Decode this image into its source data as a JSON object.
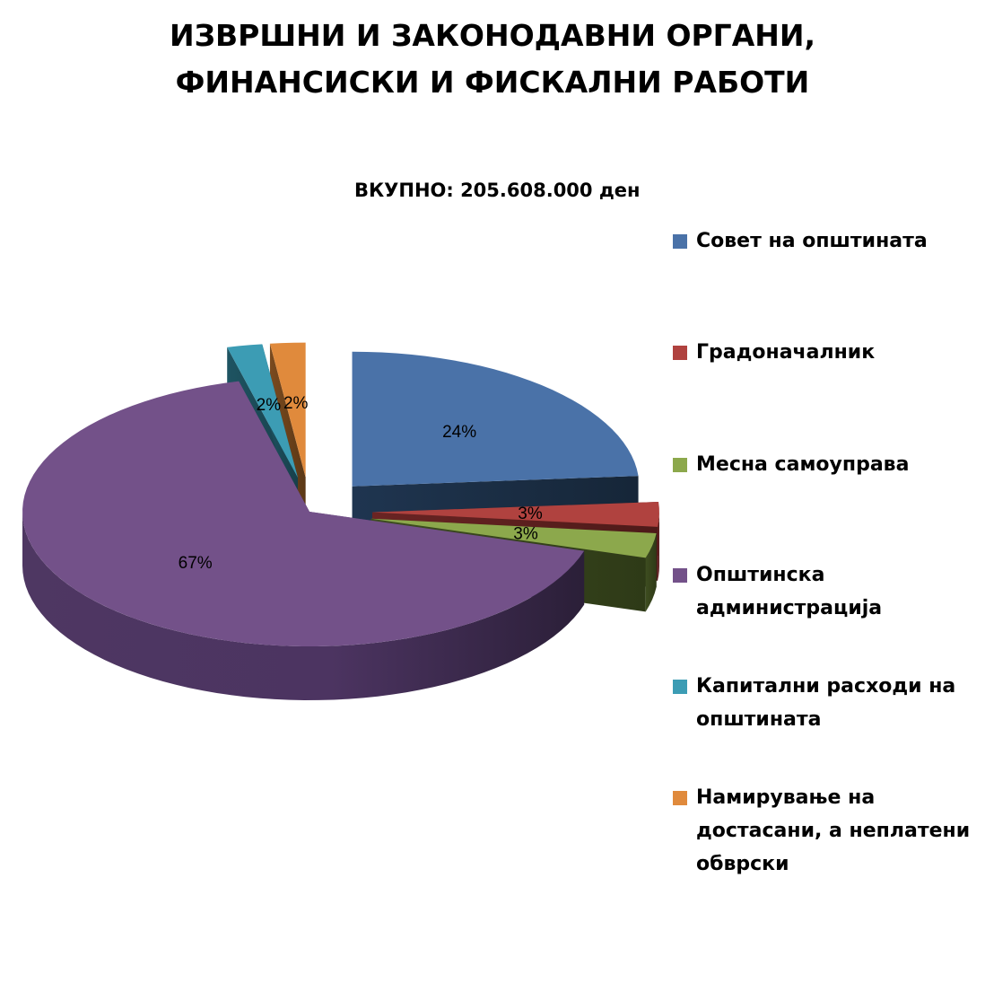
{
  "title_line1": "ИЗВРШНИ И ЗАКОНОДАВНИ ОРГАНИ,",
  "title_line2": "ФИНАНСИСКИ И ФИСКАЛНИ РАБОТИ",
  "chart_data": {
    "type": "pie",
    "title": "ИЗВРШНИ И ЗАКОНОДАВНИ ОРГАНИ, ФИНАНСИСКИ И ФИСКАЛНИ РАБОТИ",
    "subtitle": "ВКУПНО: 205.608.000 ден",
    "legend_position": "right",
    "slices": [
      {
        "label": "Совет на општината",
        "value": 24,
        "display": "24%",
        "color": "#4A72A8"
      },
      {
        "label": "Градоначалник",
        "value": 3,
        "display": "3%",
        "color": "#B0423F"
      },
      {
        "label": "Месна самоуправа",
        "value": 3,
        "display": "3%",
        "color": "#8CA84C"
      },
      {
        "label": "Општинска администрација",
        "value": 67,
        "display": "67%",
        "color": "#735189"
      },
      {
        "label": "Капитални расходи на општината",
        "value": 2,
        "display": "2%",
        "color": "#3C9CB4"
      },
      {
        "label": "Намирување на достасани, а неплатени обврски",
        "value": 2,
        "display": "2%",
        "color": "#E08A3C"
      }
    ]
  },
  "legend": [
    {
      "lines": [
        "Совет на општината"
      ]
    },
    {
      "lines": [
        "Градоначалник"
      ]
    },
    {
      "lines": [
        "Месна самоуправа"
      ]
    },
    {
      "lines": [
        "Општинска",
        "администрација"
      ]
    },
    {
      "lines": [
        "Капитални расходи на",
        "општината"
      ]
    },
    {
      "lines": [
        "Намирување на",
        "достасани, а неплатени",
        "обврски"
      ]
    }
  ]
}
